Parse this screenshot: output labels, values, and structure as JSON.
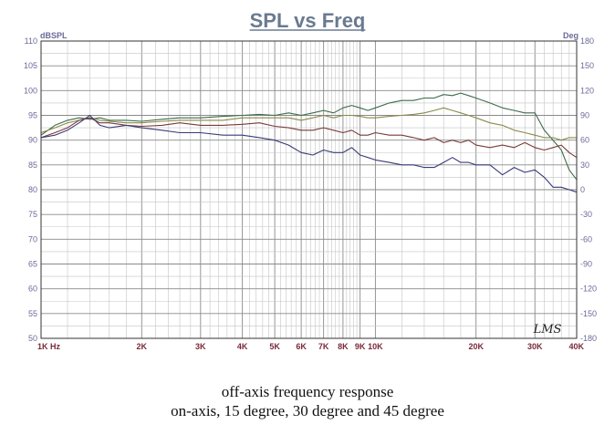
{
  "chart_data": {
    "type": "line",
    "title": "SPL vs Freq",
    "left_unit": "dBSPL",
    "right_unit": "Deg",
    "x_scale": "log",
    "xlim": [
      1000,
      40000
    ],
    "ylim": [
      50,
      110
    ],
    "y2lim": [
      -180,
      180
    ],
    "grid": true,
    "x_ticks": [
      {
        "value": 1000,
        "label": "1K  Hz"
      },
      {
        "value": 2000,
        "label": "2K"
      },
      {
        "value": 3000,
        "label": "3K"
      },
      {
        "value": 4000,
        "label": "4K"
      },
      {
        "value": 5000,
        "label": "5K"
      },
      {
        "value": 6000,
        "label": "6K"
      },
      {
        "value": 7000,
        "label": "7K"
      },
      {
        "value": 8000,
        "label": "8K"
      },
      {
        "value": 9000,
        "label": "9K"
      },
      {
        "value": 10000,
        "label": "10K"
      },
      {
        "value": 20000,
        "label": "20K"
      },
      {
        "value": 30000,
        "label": "30K"
      },
      {
        "value": 40000,
        "label": "40K"
      }
    ],
    "y_ticks": [
      "110",
      "105",
      "100",
      "95",
      "90",
      "85",
      "80",
      "75",
      "70",
      "65",
      "60",
      "55",
      "50"
    ],
    "y2_ticks": [
      "180",
      "150",
      "120",
      "90",
      "60",
      "30",
      "0",
      "-30",
      "-60",
      "-90",
      "-120",
      "-150",
      "-180"
    ],
    "series": [
      {
        "color": "#3d6b4a",
        "x": [
          1000,
          1100,
          1200,
          1300,
          1400,
          1500,
          1600,
          1800,
          2000,
          2300,
          2600,
          3000,
          3500,
          4000,
          4500,
          5000,
          5500,
          6000,
          6500,
          7000,
          7500,
          8000,
          8500,
          9000,
          9500,
          10000,
          11000,
          12000,
          13000,
          14000,
          15000,
          16000,
          17000,
          18000,
          19000,
          20000,
          22000,
          24000,
          26000,
          28000,
          30000,
          32000,
          34000,
          36000,
          38000,
          40000
        ],
        "y": [
          91.0,
          93.0,
          94.0,
          94.5,
          94.2,
          94.5,
          94.0,
          94.0,
          93.8,
          94.2,
          94.5,
          94.5,
          94.8,
          95.0,
          95.2,
          95.0,
          95.5,
          95.0,
          95.5,
          96.0,
          95.5,
          96.5,
          97.0,
          96.5,
          96.0,
          96.5,
          97.5,
          98.0,
          98.0,
          98.5,
          98.5,
          99.2,
          99.0,
          99.5,
          99.0,
          98.5,
          97.5,
          96.5,
          96.0,
          95.5,
          95.5,
          92.0,
          90.0,
          88.0,
          84.0,
          82.0
        ]
      },
      {
        "color": "#8a8a4a",
        "x": [
          1000,
          1100,
          1200,
          1300,
          1400,
          1500,
          1600,
          1800,
          2000,
          2300,
          2600,
          3000,
          3500,
          4000,
          4500,
          5000,
          5500,
          6000,
          6500,
          7000,
          7500,
          8000,
          8500,
          9000,
          9500,
          10000,
          11000,
          12000,
          13000,
          14000,
          15000,
          16000,
          17000,
          18000,
          19000,
          20000,
          22000,
          24000,
          26000,
          28000,
          30000,
          32000,
          34000,
          36000,
          38000,
          40000
        ],
        "y": [
          91.5,
          92.5,
          93.5,
          94.0,
          94.5,
          94.0,
          93.8,
          93.5,
          93.5,
          93.8,
          94.0,
          94.0,
          94.0,
          94.5,
          94.5,
          94.5,
          94.5,
          94.0,
          94.5,
          95.0,
          94.5,
          95.0,
          95.0,
          94.8,
          94.5,
          94.5,
          94.8,
          95.0,
          95.2,
          95.5,
          96.0,
          96.5,
          96.0,
          95.5,
          95.0,
          94.5,
          93.5,
          93.0,
          92.0,
          91.5,
          91.0,
          90.5,
          90.5,
          90.0,
          90.5,
          90.5
        ]
      },
      {
        "color": "#7a3a3a",
        "x": [
          1000,
          1100,
          1200,
          1300,
          1400,
          1500,
          1600,
          1800,
          2000,
          2300,
          2600,
          3000,
          3500,
          4000,
          4500,
          5000,
          5500,
          6000,
          6500,
          7000,
          7500,
          8000,
          8500,
          9000,
          9500,
          10000,
          11000,
          12000,
          13000,
          14000,
          15000,
          16000,
          17000,
          18000,
          19000,
          20000,
          22000,
          24000,
          26000,
          28000,
          30000,
          32000,
          34000,
          36000,
          38000,
          40000
        ],
        "y": [
          90.5,
          91.5,
          92.5,
          94.0,
          94.5,
          93.5,
          93.5,
          93.0,
          92.8,
          93.0,
          93.5,
          93.0,
          93.0,
          93.2,
          93.5,
          92.8,
          92.5,
          92.0,
          92.0,
          92.5,
          92.0,
          91.5,
          92.0,
          91.0,
          91.0,
          91.5,
          91.0,
          91.0,
          90.5,
          90.0,
          90.5,
          89.5,
          90.0,
          89.5,
          90.0,
          89.0,
          88.5,
          89.0,
          88.5,
          89.5,
          88.5,
          88.0,
          88.5,
          89.0,
          87.5,
          86.5
        ]
      },
      {
        "color": "#3a3a7a",
        "x": [
          1000,
          1100,
          1200,
          1300,
          1400,
          1500,
          1600,
          1800,
          2000,
          2300,
          2600,
          3000,
          3500,
          4000,
          4500,
          5000,
          5500,
          6000,
          6500,
          7000,
          7500,
          8000,
          8500,
          9000,
          9500,
          10000,
          11000,
          12000,
          13000,
          14000,
          15000,
          16000,
          17000,
          18000,
          19000,
          20000,
          22000,
          24000,
          26000,
          28000,
          30000,
          32000,
          34000,
          36000,
          38000,
          40000
        ],
        "y": [
          90.5,
          91.0,
          92.0,
          93.5,
          95.0,
          93.0,
          92.5,
          93.0,
          92.5,
          92.0,
          91.5,
          91.5,
          91.0,
          91.0,
          90.5,
          90.0,
          89.0,
          87.5,
          87.0,
          88.0,
          87.5,
          87.5,
          88.5,
          87.0,
          86.5,
          86.0,
          85.5,
          85.0,
          85.0,
          84.5,
          84.5,
          85.5,
          86.5,
          85.5,
          85.5,
          85.0,
          85.0,
          83.0,
          84.5,
          83.5,
          84.0,
          82.5,
          80.5,
          80.5,
          80.0,
          79.5
        ]
      }
    ],
    "annotations": [
      "LMS"
    ]
  },
  "caption": {
    "line1": "off-axis frequency response",
    "line2": "on-axis, 15 degree, 30 degree and 45 degree"
  }
}
